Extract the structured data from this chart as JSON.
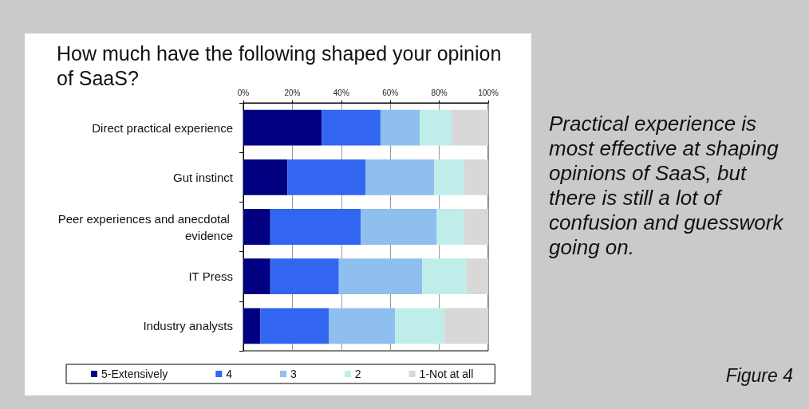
{
  "chart_data": {
    "type": "bar",
    "orientation": "horizontal",
    "stacked": true,
    "title": "How much have the following shaped your opinion of SaaS?",
    "categories": [
      "Direct practical experience",
      "Gut instinct",
      "Peer experiences and anecdotal evidence",
      "IT Press",
      "Industry analysts"
    ],
    "series": [
      {
        "name": "5-Extensively",
        "color": "#000080",
        "values": [
          32,
          18,
          11,
          11,
          7
        ]
      },
      {
        "name": "4",
        "color": "#3366f0",
        "values": [
          24,
          32,
          37,
          28,
          28
        ]
      },
      {
        "name": "3",
        "color": "#8fbfee",
        "values": [
          16,
          28,
          31,
          34,
          27
        ]
      },
      {
        "name": "2",
        "color": "#bfeeea",
        "values": [
          13,
          12,
          11,
          18,
          20
        ]
      },
      {
        "name": "1-Not at all",
        "color": "#d8d8d8",
        "values": [
          15,
          10,
          10,
          9,
          18
        ]
      }
    ],
    "xlim": [
      0,
      100
    ],
    "xticks": [
      {
        "value": 0,
        "label": "0%"
      },
      {
        "value": 20,
        "label": "20%"
      },
      {
        "value": 40,
        "label": "40%"
      },
      {
        "value": 60,
        "label": "60%"
      },
      {
        "value": 80,
        "label": "80%"
      },
      {
        "value": 100,
        "label": "100%"
      }
    ],
    "grid": "x",
    "legend": "bottom",
    "annotations": [
      "Practical experience is most effective at shaping opinions of SaaS, but there is still a lot of confusion and guesswork going on.",
      "Figure 4"
    ]
  }
}
